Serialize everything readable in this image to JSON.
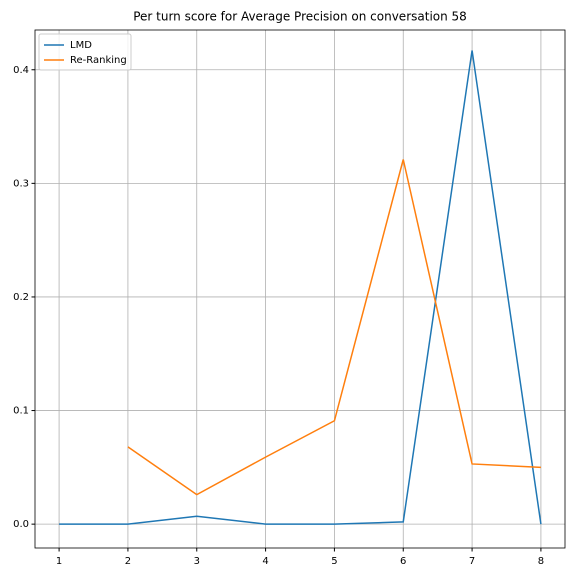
{
  "chart_data": {
    "type": "line",
    "title": "Per turn score for Average Precision on conversation 58",
    "x": [
      1,
      2,
      3,
      4,
      5,
      6,
      7,
      8
    ],
    "series": [
      {
        "name": "LMD",
        "color": "#1f77b4",
        "values": [
          0,
          0,
          0.007,
          0,
          0,
          0.002,
          0.417,
          0
        ]
      },
      {
        "name": "Re-Ranking",
        "color": "#ff7f0e",
        "values": [
          null,
          0.068,
          0.026,
          0.059,
          0.091,
          0.321,
          0.053,
          0.05
        ]
      }
    ],
    "xlim": [
      0.65,
      8.35
    ],
    "xticks": [
      1,
      2,
      3,
      4,
      5,
      6,
      7,
      8
    ],
    "ylim": [
      -0.021,
      0.435
    ],
    "yticks": [
      {
        "value": 0,
        "label": "0.0"
      },
      {
        "value": 0.1,
        "label": "0.1"
      },
      {
        "value": 0.2,
        "label": "0.2"
      },
      {
        "value": 0.3,
        "label": "0.3"
      },
      {
        "value": 0.4,
        "label": "0.4"
      }
    ],
    "grid": true,
    "legend": "upper-left"
  }
}
